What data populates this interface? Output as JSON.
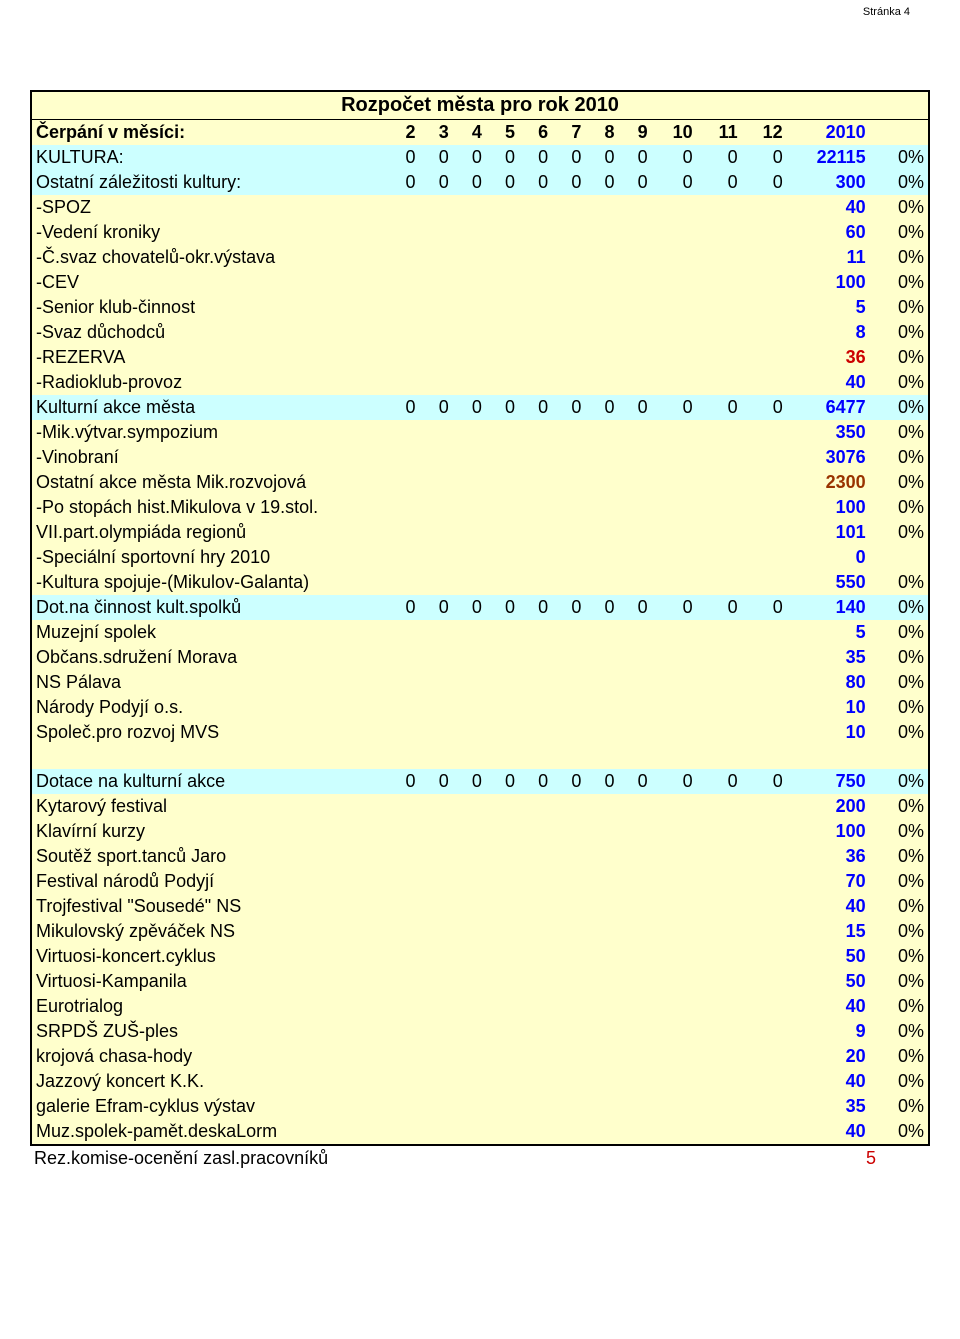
{
  "page_label": "Stránka 4",
  "table": {
    "title": "Rozpočet města pro rok 2010",
    "header_label": "Čerpání v měsíci:",
    "months": [
      "2",
      "3",
      "4",
      "5",
      "6",
      "7",
      "8",
      "9",
      "10",
      "11",
      "12"
    ],
    "total_header": "2010",
    "bg_yellow": "#ffffcc",
    "bg_cyan": "#ccffff",
    "border_color": "#000000",
    "blue": "#0000ff",
    "red": "#cc0000",
    "brown": "#993300"
  },
  "rows": [
    {
      "type": "section",
      "label": "KULTURA:",
      "months": [
        "0",
        "0",
        "0",
        "0",
        "0",
        "0",
        "0",
        "0",
        "0",
        "0",
        "0"
      ],
      "total": "22115",
      "pct": "0%"
    },
    {
      "type": "section",
      "label": "Ostatní záležitosti kultury:",
      "months": [
        "0",
        "0",
        "0",
        "0",
        "0",
        "0",
        "0",
        "0",
        "0",
        "0",
        "0"
      ],
      "total": "300",
      "pct": "0%"
    },
    {
      "type": "item",
      "label": " -SPOZ",
      "total": "40",
      "pct": "0%",
      "tstyle": "blue"
    },
    {
      "type": "item",
      "label": " -Vedení kroniky",
      "total": "60",
      "pct": "0%",
      "tstyle": "blue"
    },
    {
      "type": "item",
      "label": " -Č.svaz chovatelů-okr.výstava",
      "total": "11",
      "pct": "0%",
      "tstyle": "blue"
    },
    {
      "type": "item",
      "label": " -CEV",
      "total": "100",
      "pct": "0%",
      "tstyle": "blue"
    },
    {
      "type": "item",
      "label": " -Senior klub-činnost",
      "total": "5",
      "pct": "0%",
      "tstyle": "blue"
    },
    {
      "type": "item",
      "label": " -Svaz důchodců",
      "total": "8",
      "pct": "0%",
      "tstyle": "blue"
    },
    {
      "type": "item",
      "label": " -REZERVA",
      "total": "36",
      "pct": "0%",
      "tstyle": "red"
    },
    {
      "type": "item",
      "label": " -Radioklub-provoz",
      "total": "40",
      "pct": "0%",
      "tstyle": "blue"
    },
    {
      "type": "section",
      "label": "Kulturní akce města",
      "months": [
        "0",
        "0",
        "0",
        "0",
        "0",
        "0",
        "0",
        "0",
        "0",
        "0",
        "0"
      ],
      "total": "6477",
      "pct": "0%"
    },
    {
      "type": "item",
      "label": " -Mik.výtvar.sympozium",
      "total": "350",
      "pct": "0%",
      "tstyle": "blue"
    },
    {
      "type": "item",
      "label": " -Vinobraní",
      "total": "3076",
      "pct": "0%",
      "tstyle": "blue"
    },
    {
      "type": "item",
      "label": "Ostatní akce města Mik.rozvojová",
      "total": "2300",
      "pct": "0%",
      "tstyle": "brown"
    },
    {
      "type": "item",
      "label": " -Po stopách hist.Mikulova v 19.stol.",
      "total": "100",
      "pct": "0%",
      "tstyle": "blue"
    },
    {
      "type": "item",
      "label": "VII.part.olympiáda regionů",
      "total": "101",
      "pct": "0%",
      "tstyle": "blue"
    },
    {
      "type": "item",
      "label": " -Speciální sportovní hry 2010",
      "total": "0",
      "pct": "",
      "tstyle": "blue"
    },
    {
      "type": "item",
      "label": " -Kultura spojuje-(Mikulov-Galanta)",
      "total": "550",
      "pct": "0%",
      "tstyle": "blue"
    },
    {
      "type": "section",
      "label": "Dot.na činnost kult.spolků",
      "months": [
        "0",
        "0",
        "0",
        "0",
        "0",
        "0",
        "0",
        "0",
        "0",
        "0",
        "0"
      ],
      "total": "140",
      "pct": "0%"
    },
    {
      "type": "item",
      "label": "Muzejní spolek",
      "total": "5",
      "pct": "0%",
      "tstyle": "blue"
    },
    {
      "type": "item",
      "label": "Občans.sdružení Morava",
      "total": "35",
      "pct": "0%",
      "tstyle": "blue"
    },
    {
      "type": "item",
      "label": "NS Pálava",
      "total": "80",
      "pct": "0%",
      "tstyle": "blue"
    },
    {
      "type": "item",
      "label": "Národy Podyjí o.s.",
      "total": "10",
      "pct": "0%",
      "tstyle": "blue"
    },
    {
      "type": "item",
      "label": "Společ.pro rozvoj MVS",
      "total": "10",
      "pct": "0%",
      "tstyle": "blue"
    },
    {
      "type": "spacer"
    },
    {
      "type": "section",
      "label": "Dotace na kulturní akce",
      "months": [
        "0",
        "0",
        "0",
        "0",
        "0",
        "0",
        "0",
        "0",
        "0",
        "0",
        "0"
      ],
      "total": "750",
      "pct": "0%"
    },
    {
      "type": "item",
      "label": "Kytarový festival",
      "total": "200",
      "pct": "0%",
      "tstyle": "blue"
    },
    {
      "type": "item",
      "label": "Klavírní kurzy",
      "total": "100",
      "pct": "0%",
      "tstyle": "blue"
    },
    {
      "type": "item",
      "label": "Soutěž sport.tanců Jaro",
      "total": "36",
      "pct": "0%",
      "tstyle": "blue"
    },
    {
      "type": "item",
      "label": "Festival národů Podyjí",
      "total": "70",
      "pct": "0%",
      "tstyle": "blue"
    },
    {
      "type": "item",
      "label": "Trojfestival \"Sousedé\" NS",
      "total": "40",
      "pct": "0%",
      "tstyle": "blue"
    },
    {
      "type": "item",
      "label": "Mikulovský zpěváček NS",
      "total": "15",
      "pct": "0%",
      "tstyle": "blue"
    },
    {
      "type": "item",
      "label": "Virtuosi-koncert.cyklus",
      "total": "50",
      "pct": "0%",
      "tstyle": "blue"
    },
    {
      "type": "item",
      "label": "Virtuosi-Kampanila",
      "total": "50",
      "pct": "0%",
      "tstyle": "blue"
    },
    {
      "type": "item",
      "label": "Eurotrialog",
      "total": "40",
      "pct": "0%",
      "tstyle": "blue"
    },
    {
      "type": "item",
      "label": "SRPDŠ ZUŠ-ples",
      "total": "9",
      "pct": "0%",
      "tstyle": "blue"
    },
    {
      "type": "item",
      "label": "krojová chasa-hody",
      "total": "20",
      "pct": "0%",
      "tstyle": "blue"
    },
    {
      "type": "item",
      "label": "Jazzový koncert K.K.",
      "total": "40",
      "pct": "0%",
      "tstyle": "blue"
    },
    {
      "type": "item",
      "label": "galerie Efram-cyklus výstav",
      "total": "35",
      "pct": "0%",
      "tstyle": "blue"
    },
    {
      "type": "item",
      "label": "Muz.spolek-pamět.deskaLorm",
      "total": "40",
      "pct": "0%",
      "tstyle": "blue"
    }
  ],
  "trailing": {
    "label": "Rez.komise-ocenění zasl.pracovníků",
    "total": "5"
  }
}
